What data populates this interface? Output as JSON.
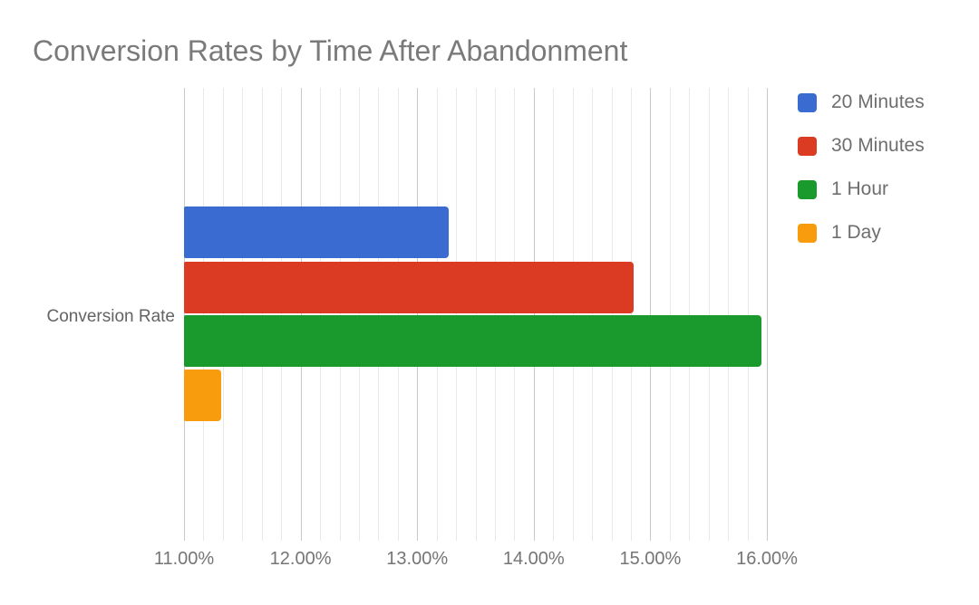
{
  "title": "Conversion Rates by Time After Abandonment",
  "colors": {
    "blue": "#3a6bd0",
    "red": "#da3b22",
    "green": "#1a9a2c",
    "orange": "#f89b0d",
    "title_text": "#7a7a7a",
    "axis_text": "#757575",
    "major_gridline": "#c9c9c9",
    "minor_gridline": "#e9e9e9"
  },
  "chart_data": {
    "type": "bar",
    "orientation": "horizontal",
    "title": "Conversion Rates by Time After Abandonment",
    "xlabel": "",
    "ylabel": "",
    "categories": [
      "Conversion Rate"
    ],
    "series": [
      {
        "name": "20 Minutes",
        "color": "#3a6bd0",
        "values": [
          13.27
        ]
      },
      {
        "name": "30 Minutes",
        "color": "#da3b22",
        "values": [
          14.86
        ]
      },
      {
        "name": "1 Hour",
        "color": "#1a9a2c",
        "values": [
          15.95
        ]
      },
      {
        "name": "1 Day",
        "color": "#f89b0d",
        "values": [
          11.32
        ]
      }
    ],
    "xlim": [
      11,
      16
    ],
    "x_tick_labels": [
      "11.00%",
      "12.00%",
      "13.00%",
      "14.00%",
      "15.00%",
      "16.00%"
    ],
    "x_major_step": 1,
    "x_minor_per_major": 6,
    "grid": true,
    "legend_position": "right",
    "value_format": "percent"
  }
}
